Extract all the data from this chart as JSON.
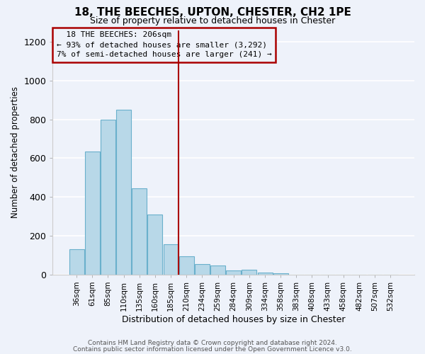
{
  "title": "18, THE BEECHES, UPTON, CHESTER, CH2 1PE",
  "subtitle": "Size of property relative to detached houses in Chester",
  "xlabel": "Distribution of detached houses by size in Chester",
  "ylabel": "Number of detached properties",
  "bar_labels": [
    "36sqm",
    "61sqm",
    "85sqm",
    "110sqm",
    "135sqm",
    "160sqm",
    "185sqm",
    "210sqm",
    "234sqm",
    "259sqm",
    "284sqm",
    "309sqm",
    "334sqm",
    "358sqm",
    "383sqm",
    "408sqm",
    "433sqm",
    "458sqm",
    "482sqm",
    "507sqm",
    "532sqm"
  ],
  "bar_values": [
    130,
    635,
    800,
    850,
    445,
    310,
    155,
    95,
    55,
    45,
    20,
    25,
    10,
    5,
    0,
    0,
    0,
    0,
    0,
    0,
    0
  ],
  "bar_color": "#b8d8e8",
  "bar_edge_color": "#6ab0cc",
  "highlight_bar_index": 7,
  "highlight_color": "#aa0000",
  "highlight_label": "18 THE BEECHES: 206sqm",
  "annotation_line1": "← 93% of detached houses are smaller (3,292)",
  "annotation_line2": "7% of semi-detached houses are larger (241) →",
  "ylim": [
    0,
    1260
  ],
  "yticks": [
    0,
    200,
    400,
    600,
    800,
    1000,
    1200
  ],
  "footnote1": "Contains HM Land Registry data © Crown copyright and database right 2024.",
  "footnote2": "Contains public sector information licensed under the Open Government Licence v3.0.",
  "background_color": "#eef2fa",
  "grid_color": "#ffffff"
}
